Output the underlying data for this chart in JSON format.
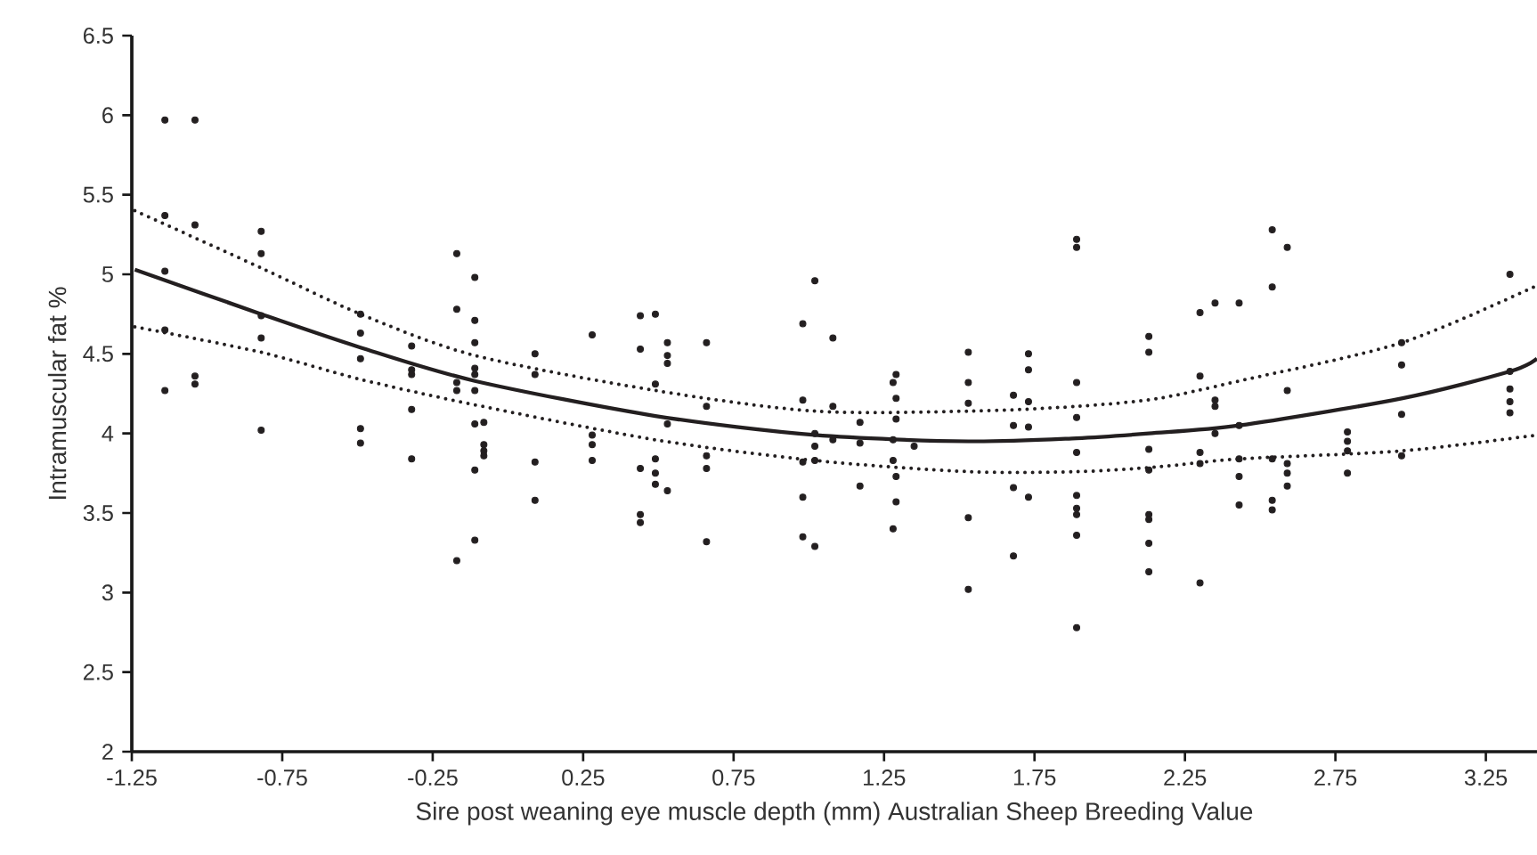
{
  "chart_data": {
    "type": "scatter",
    "xlabel": "Sire post weaning eye muscle depth (mm) Australian Sheep Breeding Value",
    "ylabel": "Intramuscular fat %",
    "xlim": [
      -1.25,
      3.42
    ],
    "ylim": [
      2,
      6.5
    ],
    "xticks": [
      {
        "value": -1.25,
        "label": "-1.25"
      },
      {
        "value": -0.75,
        "label": "-0.75"
      },
      {
        "value": -0.25,
        "label": "-0.25"
      },
      {
        "value": 0.25,
        "label": "0.25"
      },
      {
        "value": 0.75,
        "label": "0.75"
      },
      {
        "value": 1.25,
        "label": "1.25"
      },
      {
        "value": 1.75,
        "label": "1.75"
      },
      {
        "value": 2.25,
        "label": "2.25"
      },
      {
        "value": 2.75,
        "label": "2.75"
      },
      {
        "value": 3.25,
        "label": "3.25"
      }
    ],
    "yticks": [
      2,
      2.5,
      3,
      3.5,
      4,
      4.5,
      5,
      5.5,
      6,
      6.5
    ],
    "grid": false,
    "series": [
      {
        "marker": "circle",
        "color": "#231f20",
        "x": [
          -1.14,
          -1.04,
          -1.14,
          -1.04,
          -0.82,
          -0.82,
          -1.14,
          -1.14,
          -0.82,
          -0.82,
          -1.14,
          -1.04,
          -1.04,
          -0.82,
          -0.49,
          -0.49,
          -0.49,
          -0.49,
          -0.49,
          -0.32,
          -0.32,
          -0.32,
          -0.32,
          -0.32,
          -0.17,
          -0.17,
          -0.17,
          -0.17,
          -0.17,
          -0.11,
          -0.11,
          -0.11,
          -0.11,
          -0.11,
          -0.11,
          -0.11,
          -0.11,
          -0.11,
          -0.08,
          -0.08,
          -0.08,
          -0.08,
          0.09,
          0.09,
          0.09,
          0.09,
          0.28,
          0.28,
          0.28,
          0.28,
          0.44,
          0.44,
          0.44,
          0.44,
          0.44,
          0.49,
          0.49,
          0.49,
          0.49,
          0.49,
          0.53,
          0.53,
          0.53,
          0.53,
          0.53,
          0.66,
          0.66,
          0.66,
          0.66,
          0.66,
          0.98,
          0.98,
          0.98,
          0.98,
          0.98,
          1.02,
          1.02,
          1.02,
          1.02,
          1.02,
          1.08,
          1.08,
          1.08,
          1.17,
          1.17,
          1.17,
          1.28,
          1.29,
          1.29,
          1.29,
          1.28,
          1.28,
          1.29,
          1.29,
          1.28,
          1.35,
          1.53,
          1.53,
          1.53,
          1.53,
          1.53,
          1.68,
          1.68,
          1.68,
          1.68,
          1.73,
          1.73,
          1.73,
          1.73,
          1.73,
          1.89,
          1.89,
          1.89,
          1.89,
          1.89,
          1.89,
          1.89,
          1.89,
          1.89,
          1.89,
          2.13,
          2.13,
          2.13,
          2.13,
          2.13,
          2.13,
          2.13,
          2.13,
          2.3,
          2.3,
          2.3,
          2.3,
          2.3,
          2.35,
          2.35,
          2.35,
          2.35,
          2.43,
          2.43,
          2.43,
          2.43,
          2.43,
          2.54,
          2.54,
          2.54,
          2.54,
          2.54,
          2.59,
          2.59,
          2.59,
          2.59,
          2.59,
          2.79,
          2.79,
          2.79,
          2.79,
          2.97,
          2.97,
          2.97,
          2.97,
          3.33,
          3.33,
          3.33,
          3.33,
          3.33
        ],
        "values": [
          5.97,
          5.97,
          5.37,
          5.31,
          5.27,
          5.13,
          5.02,
          4.65,
          4.74,
          4.6,
          4.27,
          4.36,
          4.31,
          4.02,
          4.75,
          4.63,
          4.47,
          4.03,
          3.94,
          4.55,
          4.4,
          4.37,
          4.15,
          3.84,
          5.13,
          4.78,
          4.32,
          4.27,
          3.2,
          4.98,
          4.71,
          4.57,
          4.41,
          4.37,
          4.27,
          4.06,
          3.77,
          3.33,
          4.07,
          3.93,
          3.89,
          3.86,
          4.5,
          4.37,
          3.82,
          3.58,
          4.62,
          3.99,
          3.93,
          3.83,
          4.74,
          4.53,
          3.78,
          3.49,
          3.44,
          4.75,
          4.31,
          3.84,
          3.75,
          3.68,
          4.57,
          4.49,
          4.44,
          4.06,
          3.64,
          4.57,
          4.17,
          3.86,
          3.78,
          3.32,
          4.69,
          4.21,
          3.82,
          3.6,
          3.35,
          4.96,
          4.0,
          3.92,
          3.83,
          3.29,
          4.6,
          4.17,
          3.96,
          4.07,
          3.94,
          3.67,
          4.32,
          4.37,
          4.22,
          4.09,
          3.96,
          3.83,
          3.73,
          3.57,
          3.4,
          3.92,
          4.51,
          4.32,
          4.19,
          3.47,
          3.02,
          4.24,
          4.05,
          3.66,
          3.23,
          4.5,
          4.4,
          4.2,
          4.04,
          3.6,
          5.22,
          5.17,
          4.32,
          4.1,
          3.88,
          3.61,
          3.53,
          3.49,
          3.36,
          2.78,
          4.61,
          4.51,
          3.9,
          3.77,
          3.49,
          3.46,
          3.31,
          3.13,
          4.76,
          4.36,
          3.88,
          3.81,
          3.06,
          4.82,
          4.21,
          4.17,
          4.0,
          4.82,
          4.05,
          3.84,
          3.73,
          3.55,
          5.28,
          4.92,
          3.84,
          3.58,
          3.52,
          5.17,
          4.27,
          3.81,
          3.75,
          3.67,
          4.01,
          3.95,
          3.89,
          3.75,
          4.57,
          4.43,
          4.12,
          3.86,
          5.0,
          4.39,
          4.28,
          4.2,
          4.13
        ]
      },
      {
        "type": "line",
        "marker": "none",
        "line_style": "solid",
        "color": "#231f20",
        "x": [
          -1.24,
          -0.82,
          -0.49,
          -0.11,
          0.49,
          1.02,
          1.53,
          1.89,
          2.13,
          2.43,
          2.97,
          3.33,
          3.42
        ],
        "values": [
          5.03,
          4.75,
          4.54,
          4.33,
          4.11,
          3.99,
          3.95,
          3.97,
          4.0,
          4.05,
          4.22,
          4.39,
          4.47
        ]
      },
      {
        "type": "line",
        "line_style": "dotted",
        "color": "#231f20",
        "x": [
          -1.24,
          -0.82,
          -0.49,
          -0.11,
          0.49,
          1.02,
          1.53,
          1.89,
          2.16,
          2.43,
          2.97,
          3.42
        ],
        "marker": "none",
        "values": [
          5.4,
          5.04,
          4.75,
          4.49,
          4.27,
          4.14,
          4.14,
          4.17,
          4.22,
          4.33,
          4.57,
          4.93
        ]
      },
      {
        "type": "line",
        "line_style": "dotted",
        "color": "#231f20",
        "x": [
          -1.24,
          -0.82,
          -0.49,
          -0.11,
          0.49,
          1.02,
          1.53,
          1.89,
          2.16,
          2.43,
          2.97,
          3.42
        ],
        "marker": "none",
        "values": [
          4.67,
          4.51,
          4.34,
          4.18,
          3.96,
          3.83,
          3.76,
          3.76,
          3.79,
          3.84,
          3.89,
          3.99
        ]
      }
    ]
  }
}
